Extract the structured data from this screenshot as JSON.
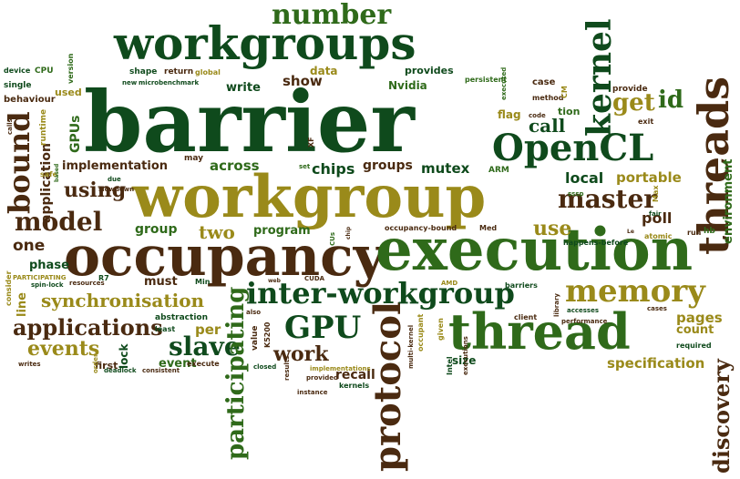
{
  "colors": {
    "dark_green": "#0f4a1c",
    "olive": "#9a8a1a",
    "brown": "#4a2a10",
    "green": "#2f6a1a",
    "light_olive": "#8a9a20"
  },
  "words": {
    "barrier": "barrier",
    "workgroup": "workgroup",
    "occupancy": "occupancy",
    "execution": "execution",
    "workgroups": "workgroups",
    "thread": "thread",
    "threads": "threads",
    "protocol": "protocol",
    "opencl": "OpenCL",
    "kernel": "kernel",
    "inter_workgroup": "inter-workgroup",
    "memory": "memory",
    "number": "number",
    "gpu": "GPU",
    "bound": "bound",
    "model": "model",
    "master": "master",
    "slave": "slave",
    "applications": "applications",
    "synchronisation": "synchronisation",
    "events": "events",
    "participating": "participating",
    "discovery": "discovery",
    "using": "using",
    "id": "id",
    "get": "get",
    "call": "call",
    "use": "use",
    "work": "work",
    "two": "two",
    "across": "across",
    "chips": "chips",
    "mutex": "mutex",
    "groups": "groups",
    "implementation": "implementation",
    "application": "application",
    "gpus": "GPUs",
    "show": "show",
    "write": "write",
    "nvidia": "Nvidia",
    "local": "local",
    "portable": "portable",
    "poll": "poll",
    "environment": "environment",
    "specification": "specification",
    "pages": "pages",
    "count": "count",
    "recall": "recall",
    "per": "per",
    "event": "event",
    "program": "program",
    "group": "group",
    "one": "one",
    "phase": "phase",
    "line": "line",
    "lock": "lock",
    "must": "must",
    "first": "first",
    "data": "data",
    "provides": "provides",
    "persistent": "persistent",
    "case": "case",
    "flag": "flag",
    "tion": "tion",
    "provide": "provide",
    "exit": "exit",
    "hb": "hb",
    "run": "run",
    "version": "version",
    "device": "device",
    "single": "single",
    "cpu": "CPU",
    "behaviour": "behaviour",
    "used": "used",
    "runtime": "runtime",
    "shape": "shape",
    "return": "return",
    "global": "global",
    "new": "new",
    "microbenchmark": "microbenchmark",
    "executed": "executed",
    "method": "method",
    "code": "code",
    "library": "library",
    "cm": "CM",
    "calls": "calls",
    "may": "may",
    "safe": "safe",
    "due": "due",
    "slowdown": "slowdown",
    "based": "based",
    "xf": "XF",
    "set": "set",
    "arm": "ARM",
    "sssp": "sssp",
    "max": "Max",
    "fair": "fair",
    "happens_before": "happens-before",
    "atomic": "atomic",
    "le": "Le",
    "med": "Med",
    "occupancy_bound": "occupancy-bound",
    "chip": "chip",
    "cus": "CUs",
    "resources": "resources",
    "r7": "R7",
    "participating_small": "PARTICIPATING",
    "consider": "consider",
    "spin_lock": "spin-lock",
    "min": "Min",
    "web": "web",
    "cuda": "CUDA",
    "amd": "AMD",
    "barriers": "barriers",
    "client": "client",
    "accesses": "accesses",
    "performance": "performance",
    "cases": "cases",
    "required": "required",
    "abstraction": "abstraction",
    "least": "least",
    "also": "also",
    "value": "value",
    "k5200": "K5200",
    "results": "results",
    "closed": "closed",
    "instance": "instance",
    "implementations": "implementations",
    "provided": "provided",
    "kernels": "kernels",
    "occupant": "occupant",
    "given": "given",
    "multi_kernel": "multi-kernel",
    "intel": "Intel",
    "size": "size",
    "executions": "executions",
    "deadlock": "deadlock",
    "consistent": "consistent",
    "order": "order",
    "execute": "execute",
    "writes": "writes"
  }
}
